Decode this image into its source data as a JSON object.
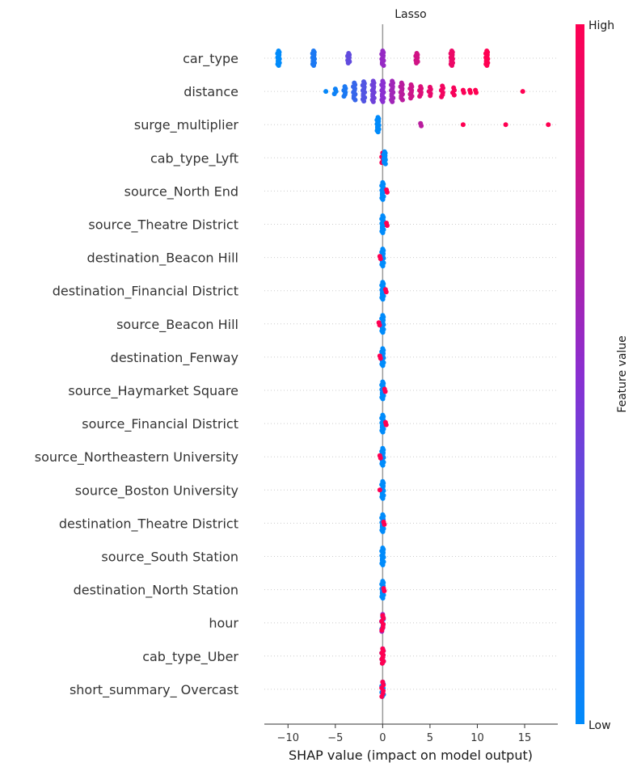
{
  "chart_data": {
    "type": "scatter",
    "subtype": "shap-beeswarm",
    "title": "Lasso",
    "xlabel": "SHAP value (impact on model output)",
    "xlim": [
      -12.5,
      18.5
    ],
    "xticks": [
      -10,
      -5,
      0,
      5,
      10,
      15
    ],
    "colorbar": {
      "label": "Feature value",
      "high": "High",
      "low": "Low",
      "low_color": "#008bfb",
      "high_color": "#ff0052"
    },
    "grid": false,
    "features": [
      {
        "name": "car_type",
        "points": [
          {
            "x": -11.0,
            "v": 0.0,
            "n": 12,
            "spread": 0.6
          },
          {
            "x": -7.3,
            "v": 0.1,
            "n": 12,
            "spread": 0.6
          },
          {
            "x": -3.6,
            "v": 0.35,
            "n": 8,
            "spread": 0.4
          },
          {
            "x": 0.0,
            "v": 0.55,
            "n": 10,
            "spread": 0.6
          },
          {
            "x": 3.6,
            "v": 0.8,
            "n": 8,
            "spread": 0.4
          },
          {
            "x": 7.3,
            "v": 0.92,
            "n": 12,
            "spread": 0.6
          },
          {
            "x": 11.0,
            "v": 1.0,
            "n": 12,
            "spread": 0.6
          }
        ]
      },
      {
        "name": "distance",
        "points": [
          {
            "x": -6.0,
            "v": 0.02,
            "n": 1,
            "spread": 0.05
          },
          {
            "x": -5.0,
            "v": 0.05,
            "n": 3,
            "spread": 0.2
          },
          {
            "x": -4.0,
            "v": 0.1,
            "n": 6,
            "spread": 0.4
          },
          {
            "x": -3.0,
            "v": 0.2,
            "n": 10,
            "spread": 0.7
          },
          {
            "x": -2.0,
            "v": 0.3,
            "n": 12,
            "spread": 0.8
          },
          {
            "x": -1.0,
            "v": 0.4,
            "n": 12,
            "spread": 0.85
          },
          {
            "x": 0.0,
            "v": 0.5,
            "n": 12,
            "spread": 0.85
          },
          {
            "x": 1.0,
            "v": 0.6,
            "n": 12,
            "spread": 0.85
          },
          {
            "x": 2.0,
            "v": 0.7,
            "n": 10,
            "spread": 0.7
          },
          {
            "x": 3.0,
            "v": 0.78,
            "n": 8,
            "spread": 0.55
          },
          {
            "x": 4.0,
            "v": 0.85,
            "n": 6,
            "spread": 0.4
          },
          {
            "x": 5.0,
            "v": 0.9,
            "n": 5,
            "spread": 0.35
          },
          {
            "x": 6.3,
            "v": 0.95,
            "n": 6,
            "spread": 0.45
          },
          {
            "x": 7.5,
            "v": 0.97,
            "n": 4,
            "spread": 0.3
          },
          {
            "x": 8.5,
            "v": 0.98,
            "n": 2,
            "spread": 0.1
          },
          {
            "x": 9.2,
            "v": 1.0,
            "n": 2,
            "spread": 0.1
          },
          {
            "x": 9.8,
            "v": 1.0,
            "n": 2,
            "spread": 0.1
          },
          {
            "x": 14.8,
            "v": 1.0,
            "n": 1,
            "spread": 0.05
          }
        ]
      },
      {
        "name": "surge_multiplier",
        "points": [
          {
            "x": -0.5,
            "v": 0.0,
            "n": 12,
            "spread": 0.6
          },
          {
            "x": 4.0,
            "v": 0.7,
            "n": 2,
            "spread": 0.1
          },
          {
            "x": 8.5,
            "v": 1.0,
            "n": 1,
            "spread": 0.05
          },
          {
            "x": 13.0,
            "v": 1.0,
            "n": 1,
            "spread": 0.05
          },
          {
            "x": 17.5,
            "v": 1.0,
            "n": 1,
            "spread": 0.05
          }
        ]
      },
      {
        "name": "cab_type_Lyft",
        "points": [
          {
            "x": 0.0,
            "v": 1.0,
            "n": 6,
            "spread": 0.4
          },
          {
            "x": 0.2,
            "v": 0.0,
            "n": 10,
            "spread": 0.5
          }
        ]
      },
      {
        "name": "source_North End",
        "points": [
          {
            "x": 0.0,
            "v": 0.0,
            "n": 12,
            "spread": 0.7
          },
          {
            "x": 0.4,
            "v": 1.0,
            "n": 2,
            "spread": 0.1
          }
        ]
      },
      {
        "name": "source_Theatre District",
        "points": [
          {
            "x": 0.0,
            "v": 0.0,
            "n": 12,
            "spread": 0.7
          },
          {
            "x": 0.4,
            "v": 1.0,
            "n": 2,
            "spread": 0.1
          }
        ]
      },
      {
        "name": "destination_Beacon Hill",
        "points": [
          {
            "x": 0.0,
            "v": 0.0,
            "n": 12,
            "spread": 0.7
          },
          {
            "x": -0.3,
            "v": 1.0,
            "n": 2,
            "spread": 0.1
          }
        ]
      },
      {
        "name": "destination_Financial District",
        "points": [
          {
            "x": 0.0,
            "v": 0.0,
            "n": 12,
            "spread": 0.7
          },
          {
            "x": 0.3,
            "v": 1.0,
            "n": 2,
            "spread": 0.1
          }
        ]
      },
      {
        "name": "source_Beacon Hill",
        "points": [
          {
            "x": 0.0,
            "v": 0.0,
            "n": 12,
            "spread": 0.7
          },
          {
            "x": -0.4,
            "v": 1.0,
            "n": 2,
            "spread": 0.1
          }
        ]
      },
      {
        "name": "destination_Fenway",
        "points": [
          {
            "x": 0.0,
            "v": 0.0,
            "n": 12,
            "spread": 0.7
          },
          {
            "x": -0.3,
            "v": 1.0,
            "n": 2,
            "spread": 0.1
          }
        ]
      },
      {
        "name": "source_Haymarket Square",
        "points": [
          {
            "x": 0.0,
            "v": 0.0,
            "n": 12,
            "spread": 0.7
          },
          {
            "x": 0.2,
            "v": 1.0,
            "n": 2,
            "spread": 0.1
          }
        ]
      },
      {
        "name": "source_Financial District",
        "points": [
          {
            "x": 0.0,
            "v": 0.0,
            "n": 12,
            "spread": 0.7
          },
          {
            "x": 0.3,
            "v": 1.0,
            "n": 2,
            "spread": 0.1
          }
        ]
      },
      {
        "name": "source_Northeastern University",
        "points": [
          {
            "x": 0.0,
            "v": 0.0,
            "n": 12,
            "spread": 0.7
          },
          {
            "x": -0.3,
            "v": 1.0,
            "n": 2,
            "spread": 0.1
          }
        ]
      },
      {
        "name": "source_Boston University",
        "points": [
          {
            "x": 0.0,
            "v": 0.0,
            "n": 12,
            "spread": 0.7
          },
          {
            "x": -0.3,
            "v": 1.0,
            "n": 1,
            "spread": 0.05
          }
        ]
      },
      {
        "name": "destination_Theatre District",
        "points": [
          {
            "x": 0.0,
            "v": 0.0,
            "n": 12,
            "spread": 0.7
          },
          {
            "x": 0.1,
            "v": 1.0,
            "n": 2,
            "spread": 0.1
          }
        ]
      },
      {
        "name": "source_South Station",
        "points": [
          {
            "x": 0.0,
            "v": 0.0,
            "n": 12,
            "spread": 0.7
          }
        ]
      },
      {
        "name": "destination_North Station",
        "points": [
          {
            "x": 0.0,
            "v": 0.0,
            "n": 12,
            "spread": 0.7
          },
          {
            "x": 0.1,
            "v": 1.0,
            "n": 2,
            "spread": 0.1
          }
        ]
      },
      {
        "name": "hour",
        "points": [
          {
            "x": 0.0,
            "v": 0.0,
            "n": 6,
            "spread": 0.5
          },
          {
            "x": 0.0,
            "v": 0.6,
            "n": 6,
            "spread": 0.7
          },
          {
            "x": 0.0,
            "v": 1.0,
            "n": 6,
            "spread": 0.6
          }
        ]
      },
      {
        "name": "cab_type_Uber",
        "points": [
          {
            "x": 0.0,
            "v": 0.0,
            "n": 8,
            "spread": 0.6
          },
          {
            "x": 0.0,
            "v": 1.0,
            "n": 8,
            "spread": 0.6
          }
        ]
      },
      {
        "name": "short_summary_ Overcast ",
        "points": [
          {
            "x": 0.0,
            "v": 0.0,
            "n": 8,
            "spread": 0.6
          },
          {
            "x": 0.0,
            "v": 1.0,
            "n": 6,
            "spread": 0.6
          }
        ]
      }
    ]
  }
}
